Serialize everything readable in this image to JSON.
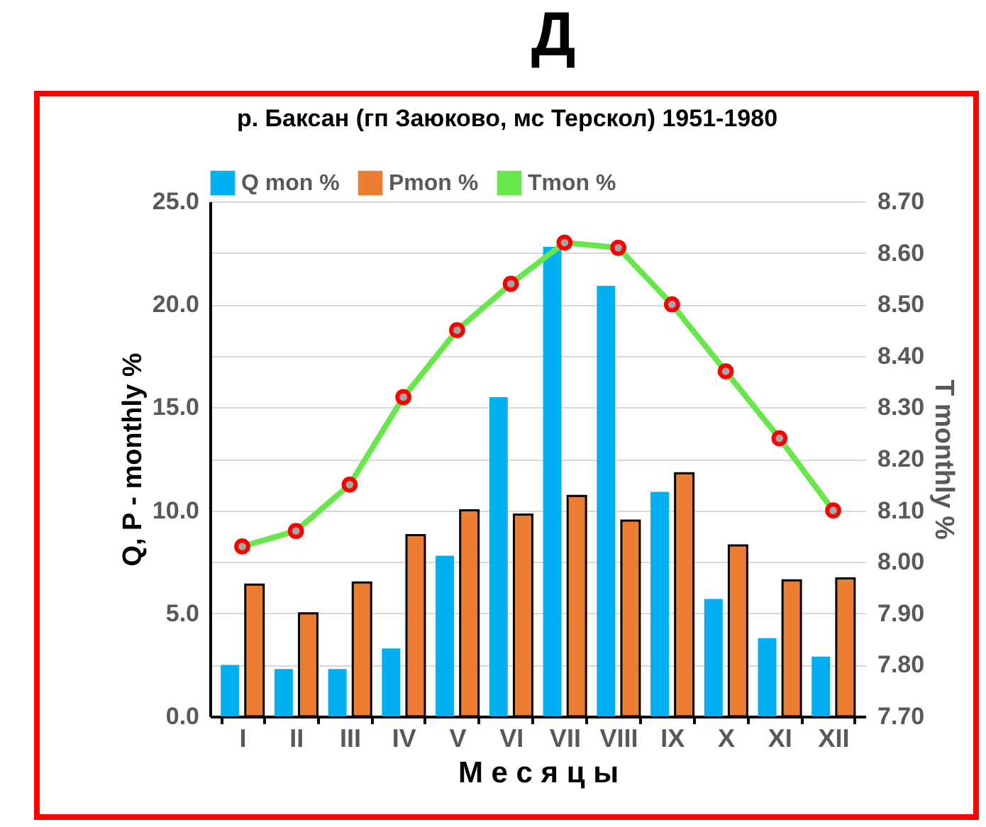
{
  "chart_data": {
    "type": "bar",
    "title": "Д",
    "subtitle": "р. Баксан (гп Заюково, мс Терскол) 1951-1980",
    "xlabel": "М е с я ц ы",
    "ylabel": "Q, P - monthly  %",
    "y2label": "T monthly %",
    "categories": [
      "I",
      "II",
      "III",
      "IV",
      "V",
      "VI",
      "VII",
      "VIII",
      "IX",
      "X",
      "XI",
      "XII"
    ],
    "series": [
      {
        "name": "Q mon %",
        "color": "#00b0f0",
        "values": [
          2.5,
          2.3,
          2.3,
          3.3,
          7.8,
          15.5,
          22.8,
          20.9,
          10.9,
          5.7,
          3.8,
          2.9
        ]
      },
      {
        "name": "Pmon %",
        "color": "#ed7d31",
        "values": [
          6.4,
          5.0,
          6.5,
          8.8,
          10.0,
          9.8,
          10.7,
          9.5,
          11.8,
          8.3,
          6.6,
          6.7
        ]
      },
      {
        "name": "Tmon %",
        "color": "#66e84a",
        "type": "line",
        "axis": "y2",
        "values": [
          8.03,
          8.06,
          8.15,
          8.32,
          8.45,
          8.54,
          8.62,
          8.61,
          8.5,
          8.37,
          8.24,
          8.1
        ]
      }
    ],
    "ylim": [
      0,
      25
    ],
    "yticks": [
      {
        "value": 0,
        "label": "0.0"
      },
      {
        "value": 5,
        "label": "5.0"
      },
      {
        "value": 10,
        "label": "10.0"
      },
      {
        "value": 15,
        "label": "15.0"
      },
      {
        "value": 20,
        "label": "20.0"
      },
      {
        "value": 25,
        "label": "25.0"
      }
    ],
    "y2lim": [
      7.7,
      8.7
    ],
    "y2ticks": [
      {
        "value": 7.7,
        "label": "7.70"
      },
      {
        "value": 7.8,
        "label": "7.80"
      },
      {
        "value": 7.9,
        "label": "7.90"
      },
      {
        "value": 8.0,
        "label": "8.00"
      },
      {
        "value": 8.1,
        "label": "8.10"
      },
      {
        "value": 8.2,
        "label": "8.20"
      },
      {
        "value": 8.3,
        "label": "8.30"
      },
      {
        "value": 8.4,
        "label": "8.40"
      },
      {
        "value": 8.5,
        "label": "8.50"
      },
      {
        "value": 8.6,
        "label": "8.60"
      },
      {
        "value": 8.7,
        "label": "8.70"
      }
    ],
    "grid": "y",
    "legend": "top",
    "marker": "circle",
    "line_style": "solid"
  }
}
